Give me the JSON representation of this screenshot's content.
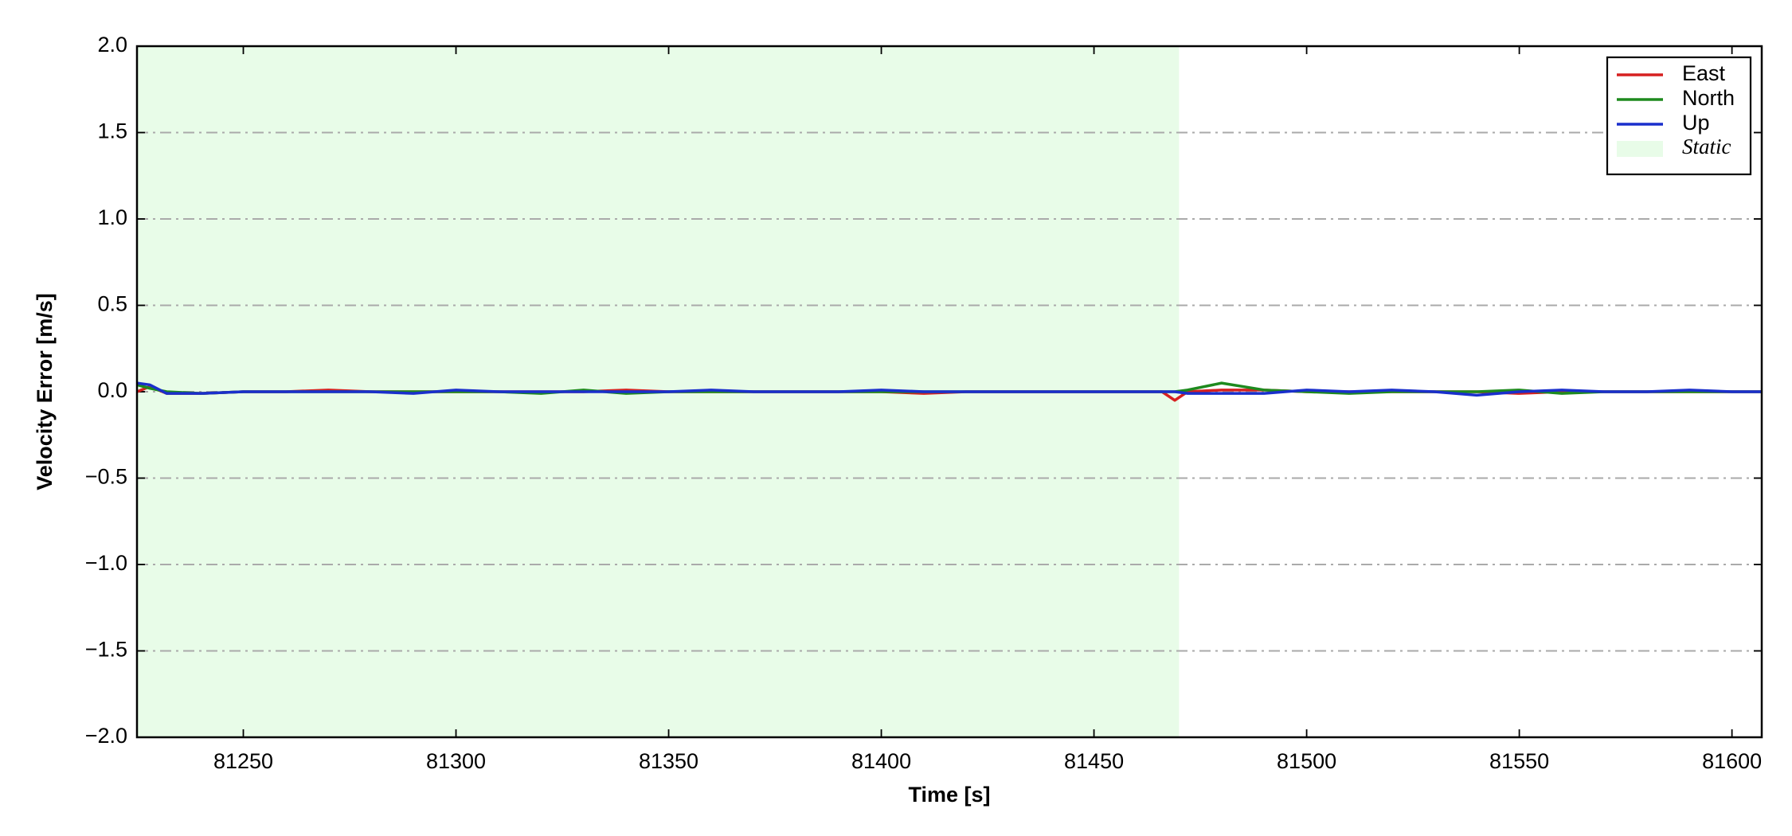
{
  "chart_data": {
    "type": "line",
    "xlabel": "Time [s]",
    "ylabel": "Velocity Error [m/s]",
    "x": [
      81225,
      81228,
      81232,
      81240,
      81250,
      81260,
      81270,
      81280,
      81290,
      81300,
      81310,
      81320,
      81330,
      81340,
      81350,
      81360,
      81370,
      81380,
      81390,
      81400,
      81410,
      81420,
      81430,
      81440,
      81450,
      81460,
      81466,
      81469,
      81472,
      81480,
      81490,
      81500,
      81510,
      81520,
      81530,
      81540,
      81550,
      81560,
      81570,
      81580,
      81590,
      81600,
      81607
    ],
    "series": [
      {
        "name": "East",
        "color": "#d62020",
        "values": [
          0,
          0.03,
          -0.01,
          -0.01,
          0,
          0,
          0.01,
          0,
          0,
          0,
          0,
          0,
          0,
          0.01,
          0,
          0,
          0,
          0,
          0,
          0,
          -0.01,
          0,
          0,
          0,
          0,
          0,
          0,
          -0.05,
          0,
          0.01,
          0.01,
          0,
          0,
          0,
          0,
          0,
          -0.01,
          0,
          0,
          0,
          0,
          0,
          0
        ]
      },
      {
        "name": "North",
        "color": "#1e8a1e",
        "values": [
          0.04,
          0.02,
          0,
          -0.01,
          0,
          0,
          0,
          0,
          0,
          0,
          0,
          -0.01,
          0.01,
          -0.01,
          0,
          0,
          0,
          0,
          0,
          0,
          0,
          0,
          0,
          0,
          0,
          0,
          0,
          0,
          0.01,
          0.05,
          0.01,
          0,
          -0.01,
          0,
          0,
          0,
          0.01,
          -0.01,
          0,
          0,
          0,
          0,
          0
        ]
      },
      {
        "name": "Up",
        "color": "#1a2fcc",
        "values": [
          0.05,
          0.04,
          -0.01,
          -0.01,
          0,
          0,
          0,
          0,
          -0.01,
          0.01,
          0,
          0,
          0,
          0,
          0,
          0.01,
          0,
          0,
          0,
          0.01,
          0,
          0,
          0,
          0,
          0,
          0,
          0,
          0,
          -0.01,
          -0.01,
          -0.01,
          0.01,
          0,
          0.01,
          0,
          -0.02,
          0,
          0.01,
          0,
          0,
          0.01,
          0,
          0
        ]
      }
    ],
    "static_span": {
      "name": "Static",
      "color": "#e8fce8",
      "x": [
        81225,
        81470
      ]
    },
    "xlim": [
      81225,
      81607
    ],
    "xticks": [
      81250,
      81300,
      81350,
      81400,
      81450,
      81500,
      81550,
      81600
    ],
    "ylim": [
      -2,
      2
    ],
    "yticks": [
      {
        "value": -2,
        "label": "−2.0"
      },
      {
        "value": -1.5,
        "label": "−1.5"
      },
      {
        "value": -1,
        "label": "−1.0"
      },
      {
        "value": -0.5,
        "label": "−0.5"
      },
      {
        "value": 0,
        "label": "0.0"
      },
      {
        "value": 0.5,
        "label": "0.5"
      },
      {
        "value": 1,
        "label": "1.0"
      },
      {
        "value": 1.5,
        "label": "1.5"
      },
      {
        "value": 2,
        "label": "2.0"
      }
    ],
    "grid": true,
    "legend": "upper right"
  }
}
